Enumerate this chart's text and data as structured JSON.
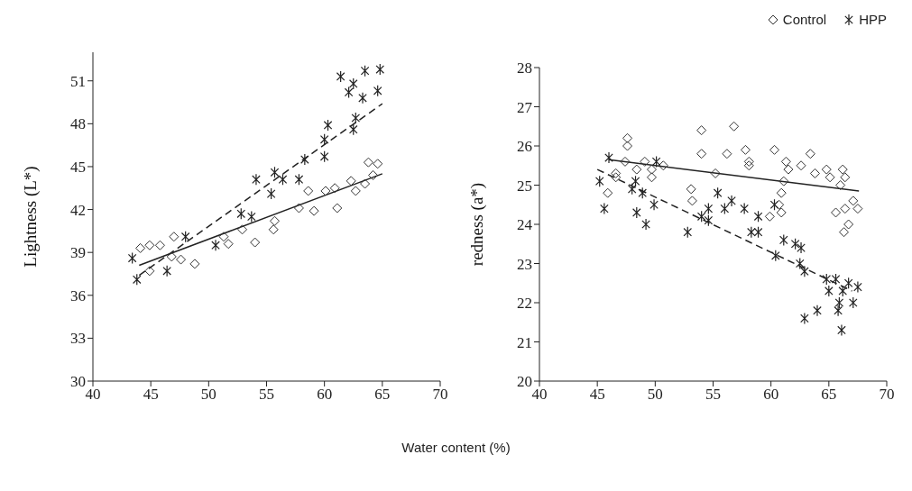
{
  "chart_data": [
    {
      "type": "scatter",
      "xlabel": "Water content (%)",
      "ylabel": "Lightness (L*)",
      "xlim": [
        40,
        70
      ],
      "xticks": [
        40,
        45,
        50,
        55,
        60,
        65,
        70
      ],
      "ylim": [
        30,
        53
      ],
      "yticks": [
        30,
        33,
        36,
        39,
        42,
        45,
        48,
        51
      ],
      "grid": false,
      "legend": false,
      "series": [
        {
          "color": "#333333",
          "marker": "diamond",
          "x": [
            44.1,
            44.9,
            44.9,
            45.8,
            46.8,
            47.0,
            47.6,
            48.8,
            51.3,
            51.7,
            52.9,
            54.0,
            55.6,
            55.7,
            57.8,
            59.1,
            58.6,
            60.1,
            60.9,
            61.1,
            62.3,
            62.7,
            63.5,
            63.8,
            64.6,
            64.2
          ],
          "values": [
            39.3,
            39.5,
            37.7,
            39.5,
            38.7,
            40.1,
            38.5,
            38.2,
            40.1,
            39.6,
            40.6,
            39.7,
            40.6,
            41.2,
            42.1,
            41.9,
            43.3,
            43.3,
            43.5,
            42.1,
            44.0,
            43.3,
            43.8,
            45.3,
            45.2,
            44.4
          ]
        },
        {
          "color": "#222222",
          "marker": "cross",
          "x": [
            43.4,
            43.8,
            46.4,
            48.0,
            50.6,
            52.8,
            53.7,
            54.1,
            55.7,
            56.4,
            57.8,
            55.4,
            58.3,
            60.0,
            60.0,
            60.3,
            62.7,
            62.5,
            61.4,
            62.5,
            63.5,
            64.8,
            62.1,
            63.3,
            64.6
          ],
          "values": [
            38.6,
            37.1,
            37.7,
            40.1,
            39.5,
            41.7,
            41.5,
            44.1,
            44.6,
            44.1,
            44.1,
            43.1,
            45.5,
            45.7,
            46.9,
            47.9,
            48.4,
            47.6,
            51.3,
            50.8,
            51.7,
            51.8,
            50.2,
            49.8,
            50.3
          ]
        },
        {
          "type": "line",
          "color": "#222222",
          "line_style": "solid",
          "marker": "none",
          "x": [
            44,
            65
          ],
          "values": [
            38.1,
            44.5
          ]
        },
        {
          "type": "line",
          "color": "#222222",
          "line_style": "dashed",
          "marker": "none",
          "x": [
            44,
            65
          ],
          "values": [
            37.4,
            49.4
          ]
        }
      ]
    },
    {
      "type": "scatter",
      "ylabel": "redness (a*)",
      "xlim": [
        40,
        70
      ],
      "xticks": [
        40,
        45,
        50,
        55,
        60,
        65,
        70
      ],
      "ylim": [
        20,
        28
      ],
      "yticks": [
        20,
        21,
        22,
        23,
        24,
        25,
        26,
        27,
        28
      ],
      "grid": false,
      "legend": "top right",
      "series": [
        {
          "name": "Control",
          "color": "#333333",
          "marker": "diamond",
          "x": [
            47.6,
            47.6,
            47.4,
            46.6,
            46.6,
            48.4,
            49.1,
            49.7,
            49.7,
            50.7,
            45.9,
            54.0,
            54.0,
            53.1,
            53.2,
            56.8,
            56.2,
            57.8,
            58.1,
            58.1,
            60.3,
            61.3,
            61.5,
            63.4,
            62.6,
            63.8,
            64.8,
            66.2,
            65.1,
            66.4,
            66.0,
            61.1,
            60.9,
            60.7,
            59.9,
            60.9,
            55.2,
            67.1,
            65.6,
            66.4,
            67.5,
            66.7,
            66.3
          ],
          "values": [
            26.2,
            26.0,
            25.6,
            25.3,
            25.2,
            25.4,
            25.6,
            25.4,
            25.2,
            25.5,
            24.8,
            26.4,
            25.8,
            24.9,
            24.6,
            26.5,
            25.8,
            25.9,
            25.6,
            25.5,
            25.9,
            25.6,
            25.4,
            25.8,
            25.5,
            25.3,
            25.4,
            25.4,
            25.2,
            25.2,
            25.0,
            25.1,
            24.8,
            24.5,
            24.2,
            24.3,
            25.3,
            24.6,
            24.3,
            24.4,
            24.4,
            24.0,
            23.8
          ]
        },
        {
          "name": "HPP",
          "color": "#222222",
          "marker": "cross",
          "x": [
            46.0,
            45.2,
            45.6,
            48.3,
            48.0,
            48.9,
            48.4,
            49.2,
            49.9,
            50.1,
            52.8,
            54.0,
            55.4,
            54.6,
            56.0,
            56.6,
            57.7,
            54.6,
            58.9,
            60.3,
            58.3,
            58.9,
            60.4,
            61.1,
            62.1,
            62.6,
            62.5,
            62.9,
            64.8,
            65.6,
            66.7,
            67.5,
            65.0,
            66.2,
            65.9,
            67.1,
            64.0,
            65.8,
            66.1,
            62.9
          ],
          "values": [
            25.7,
            25.1,
            24.4,
            25.1,
            24.9,
            24.8,
            24.3,
            24.0,
            24.5,
            25.6,
            23.8,
            24.2,
            24.8,
            24.4,
            24.4,
            24.6,
            24.4,
            24.1,
            24.2,
            24.5,
            23.8,
            23.8,
            23.2,
            23.6,
            23.5,
            23.4,
            23.0,
            22.8,
            22.6,
            22.6,
            22.5,
            22.4,
            22.3,
            22.3,
            22.0,
            22.0,
            21.8,
            21.8,
            21.3,
            21.6
          ]
        },
        {
          "type": "line",
          "color": "#222222",
          "line_style": "solid",
          "marker": "none",
          "x": [
            46,
            67.6
          ],
          "values": [
            25.65,
            24.85
          ]
        },
        {
          "type": "line",
          "color": "#222222",
          "line_style": "dashed",
          "marker": "none",
          "x": [
            45,
            67
          ],
          "values": [
            25.4,
            22.3
          ]
        }
      ]
    }
  ]
}
